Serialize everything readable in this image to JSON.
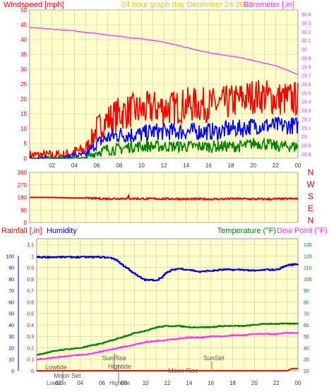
{
  "colors": {
    "background": "#ffffff",
    "plot_bg": "#ffffcc",
    "grid": "#c8c8b4",
    "wind": "#ff0000",
    "wind_blue": "#0000ff",
    "wind_green": "#008000",
    "barometer": "#ff33ff",
    "title": "#e6c800",
    "direction": "#e60000",
    "humidity": "#0000cc",
    "temperature": "#008000",
    "dewpoint": "#ff33ff",
    "rainfall": "#ff0000",
    "axis_text": "#333333",
    "event_text": "#555555"
  },
  "chart_data": [
    {
      "type": "line",
      "title": "24 hour graph day   December 24 2020",
      "left_axis_title": "Windspeed [mph]",
      "right_axis_title": "Barometer [,in]",
      "x_ticks": [
        "02",
        "04",
        "06",
        "08",
        "10",
        "12",
        "14",
        "16",
        "18",
        "20",
        "22",
        "00"
      ],
      "xlim": [
        0,
        24
      ],
      "ylim_left": [
        0,
        50
      ],
      "yticks_left": [
        "0",
        "5",
        "10",
        "15",
        "20",
        "25",
        "30",
        "35",
        "40",
        "45",
        "50"
      ],
      "ylim_right": [
        28.75,
        30.45
      ],
      "yticks_right": [
        "28.8",
        "28.9",
        "29",
        "29.1",
        "29.2",
        "29.3",
        "29.4",
        "29.5",
        "29.6",
        "29.7",
        "29.8",
        "29.9",
        "30",
        "30.1",
        "30.2",
        "30.3",
        "30.4"
      ],
      "grid": true,
      "series": [
        {
          "axis": "left",
          "color": "#ff0000",
          "x": [
            0,
            1,
            2,
            3,
            4,
            5,
            5.5,
            6,
            7,
            8,
            9,
            10,
            11,
            12,
            13,
            14,
            15,
            16,
            17,
            18,
            19,
            20,
            21,
            22,
            23,
            24
          ],
          "y": [
            1,
            1,
            1,
            1,
            2,
            3,
            6,
            10,
            13,
            15,
            16,
            16,
            17,
            17,
            17,
            18,
            18,
            18,
            18,
            19,
            20,
            21,
            21,
            20,
            20,
            20
          ],
          "spread": 6
        },
        {
          "axis": "left",
          "color": "#0000ff",
          "x": [
            0,
            1,
            2,
            3,
            4,
            5,
            5.5,
            6,
            7,
            8,
            9,
            10,
            11,
            12,
            13,
            14,
            15,
            16,
            17,
            18,
            19,
            20,
            21,
            22,
            23,
            24
          ],
          "y": [
            0,
            0,
            0,
            0,
            1,
            1,
            3,
            5,
            7,
            8,
            8,
            8,
            9,
            9,
            9,
            9,
            9,
            9,
            9,
            10,
            10,
            11,
            11,
            11,
            11,
            11
          ],
          "spread": 3
        },
        {
          "axis": "left",
          "color": "#008000",
          "x": [
            0,
            1,
            2,
            3,
            4,
            5,
            5.5,
            6,
            7,
            8,
            9,
            10,
            11,
            12,
            13,
            14,
            15,
            16,
            17,
            18,
            19,
            20,
            21,
            22,
            23,
            24
          ],
          "y": [
            0,
            0,
            0,
            0,
            0,
            0,
            1,
            2,
            3,
            3,
            4,
            4,
            4,
            4,
            4,
            4,
            4,
            4,
            4,
            4,
            4,
            5,
            5,
            4,
            4,
            4
          ],
          "spread": 2
        },
        {
          "axis": "right",
          "color": "#ff33ff",
          "x": [
            0,
            1,
            2,
            3,
            4,
            5,
            6,
            7,
            8,
            9,
            10,
            11,
            12,
            13,
            14,
            15,
            16,
            17,
            18,
            19,
            20,
            21,
            22,
            23,
            24
          ],
          "y": [
            30.25,
            30.24,
            30.23,
            30.22,
            30.21,
            30.19,
            30.18,
            30.16,
            30.15,
            30.13,
            30.12,
            30.1,
            30.08,
            30.05,
            30.02,
            29.99,
            29.96,
            29.94,
            29.92,
            29.9,
            29.87,
            29.84,
            29.81,
            29.76,
            29.71
          ],
          "spread": 0
        }
      ]
    },
    {
      "type": "line",
      "x_ticks": [
        "02",
        "04",
        "06",
        "08",
        "10",
        "12",
        "14",
        "16",
        "18",
        "20",
        "22",
        "00"
      ],
      "xlim": [
        0,
        24
      ],
      "ylim": [
        0,
        360
      ],
      "yticks": [
        "0",
        "90",
        "180",
        "270",
        "360"
      ],
      "direction_labels": [
        "N",
        "W",
        "S",
        "E",
        "N"
      ],
      "grid": true,
      "series": [
        {
          "color": "#e60000",
          "x": [
            0,
            2,
            3,
            4,
            5,
            6,
            7,
            8,
            9,
            10,
            11,
            12,
            13,
            14,
            15,
            16,
            17,
            18,
            19,
            20,
            21,
            22,
            23,
            24
          ],
          "y": [
            180,
            180,
            178,
            176,
            175,
            172,
            170,
            172,
            172,
            170,
            170,
            170,
            170,
            168,
            168,
            168,
            168,
            170,
            170,
            168,
            168,
            168,
            170,
            170
          ],
          "spread": 6
        }
      ]
    },
    {
      "type": "line",
      "left_axis_title_1": "Rainfall [,in]",
      "left_axis_title_2": "Humidity",
      "right_axis_title_1": "Temperature (°F)",
      "right_axis_title_2": "Dew Point (°F)",
      "x_ticks": [
        "02",
        "04",
        "06",
        "08",
        "10",
        "12",
        "14",
        "16",
        "18",
        "20",
        "22",
        "00"
      ],
      "xlim": [
        0,
        24
      ],
      "ylim_rain": [
        0,
        1.15
      ],
      "yticks_rain": [
        "0",
        "0.1",
        "0.2",
        "0.3",
        "0.4",
        "0.5",
        "0.6",
        "0.7",
        "0.8",
        "0.9",
        "1",
        "1.1"
      ],
      "ylim_humidity": [
        0,
        115
      ],
      "yticks_humidity": [
        "0",
        "10",
        "20",
        "30",
        "40",
        "50",
        "60",
        "70",
        "80",
        "90",
        "100"
      ],
      "ylim_temp": [
        20,
        135
      ],
      "yticks_temp": [
        "20",
        "30",
        "40",
        "50",
        "60",
        "70",
        "80",
        "90",
        "100",
        "110",
        "120",
        "130"
      ],
      "grid": true,
      "series": [
        {
          "axis": "humidity",
          "color": "#0000cc",
          "x": [
            0,
            2,
            4,
            6,
            7,
            7.5,
            8,
            8.5,
            9,
            9.5,
            10,
            10.5,
            11,
            11.5,
            12,
            12.5,
            13,
            14,
            15,
            15.5,
            16,
            17,
            18,
            19,
            20,
            21,
            22,
            23,
            24
          ],
          "y": [
            99,
            99,
            99,
            99,
            98,
            95,
            91,
            88,
            84,
            81,
            79,
            79,
            79,
            82,
            86,
            88,
            89,
            88,
            86,
            87,
            87,
            88,
            88,
            88,
            87,
            88,
            88,
            92,
            93
          ]
        },
        {
          "axis": "temp",
          "color": "#008000",
          "x": [
            0,
            1,
            2,
            3,
            4,
            5,
            6,
            7,
            8,
            9,
            10,
            11,
            12,
            13,
            14,
            15,
            16,
            17,
            18,
            19,
            20,
            21,
            22,
            23,
            24
          ],
          "y": [
            34,
            36,
            38,
            39,
            40,
            42,
            44,
            47,
            50,
            53,
            55,
            58,
            59,
            59,
            58,
            58,
            58,
            59,
            59,
            59,
            60,
            61,
            61,
            61,
            61
          ]
        },
        {
          "axis": "temp",
          "color": "#ff33ff",
          "x": [
            0,
            1,
            2,
            3,
            4,
            5,
            6,
            7,
            8,
            9,
            10,
            11,
            12,
            13,
            14,
            15,
            16,
            17,
            18,
            19,
            20,
            21,
            22,
            23,
            24
          ],
          "y": [
            30,
            31,
            32,
            33,
            34,
            35,
            37,
            39,
            41,
            43,
            45,
            46,
            47,
            48,
            49,
            49,
            50,
            50,
            51,
            51,
            52,
            52,
            52,
            53,
            53
          ]
        },
        {
          "axis": "rain",
          "color": "#ff0000",
          "x": [
            0,
            23,
            23.5,
            24
          ],
          "y": [
            0,
            0,
            0.02,
            0.02
          ]
        }
      ],
      "events": {
        "lowtide_1": "Lowtide",
        "moonset": "Moon Set",
        "lowtide_2": "Lowtide",
        "sunrise": "SunRise",
        "hightide_1": "Hightide",
        "hightide_2": "Hightide",
        "moonrise": "Moon Rise",
        "sunset": "SunSet"
      }
    }
  ]
}
